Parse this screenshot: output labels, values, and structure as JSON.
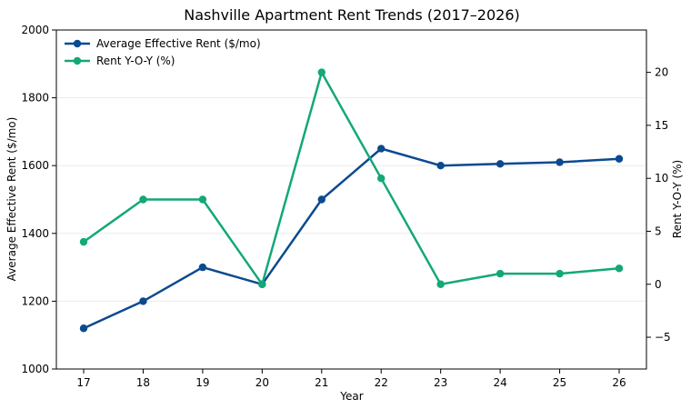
{
  "chart_data": {
    "type": "line",
    "title": "Nashville Apartment Rent Trends (2017–2026)",
    "xlabel": "Year",
    "ylabel_left": "Average Effective Rent ($/mo)",
    "ylabel_right": "Rent Y-O-Y (%)",
    "categories": [
      "17",
      "18",
      "19",
      "20",
      "21",
      "22",
      "23",
      "24",
      "25",
      "26"
    ],
    "ylim_left": [
      1000,
      2000
    ],
    "yticks_left": [
      1000,
      1200,
      1400,
      1600,
      1800,
      2000
    ],
    "ylim_right": [
      -8,
      24
    ],
    "yticks_right": [
      -5,
      0,
      5,
      10,
      15,
      20
    ],
    "grid": "horizontal, light",
    "legend_position": "top-left",
    "series": [
      {
        "name": "Average Effective Rent ($/mo)",
        "axis": "left",
        "color": "#0b4a8f",
        "values": [
          1120,
          1200,
          1300,
          1250,
          1500,
          1650,
          1600,
          1605,
          1610,
          1620
        ]
      },
      {
        "name": "Rent Y-O-Y (%)",
        "axis": "right",
        "color": "#12a878",
        "values": [
          4,
          8,
          8,
          0,
          20,
          10,
          0,
          1,
          1,
          1.5
        ]
      }
    ]
  }
}
